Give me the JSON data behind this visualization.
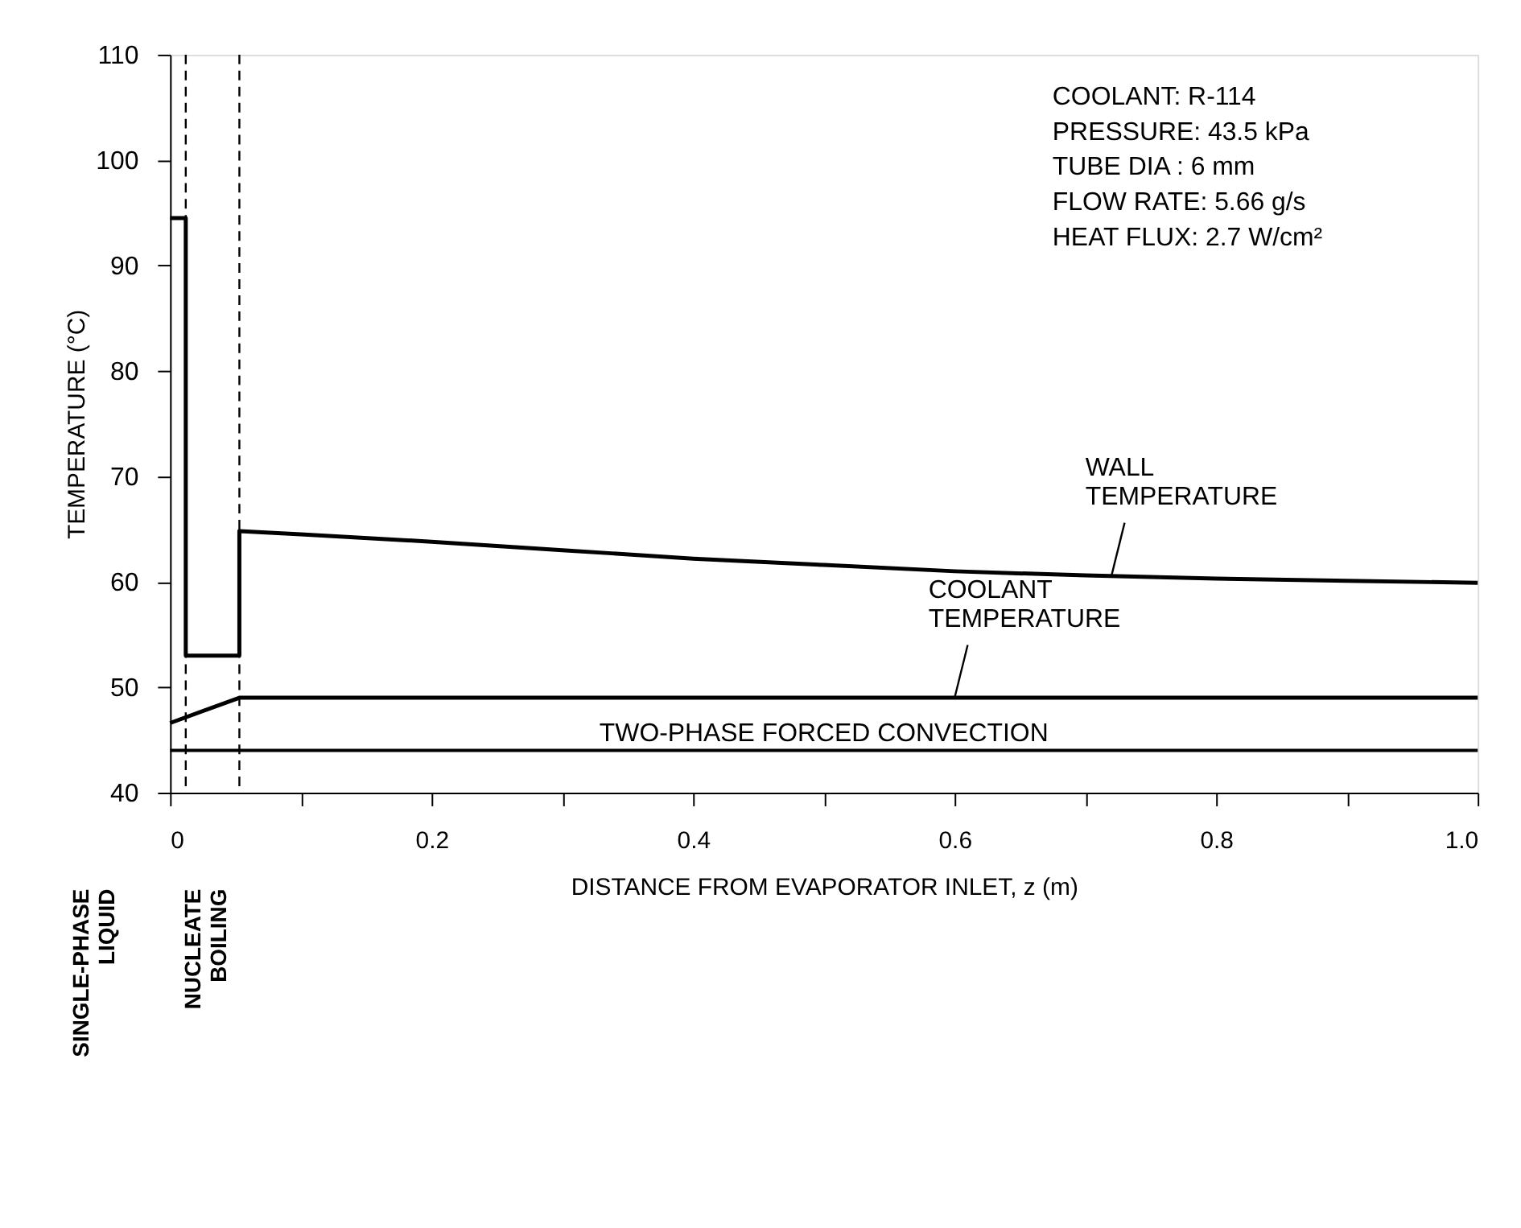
{
  "chart_data": {
    "type": "line",
    "xlabel": "DISTANCE FROM EVAPORATOR INLET, z (m)",
    "ylabel": "TEMPERATURE (°C)",
    "series": [
      {
        "color": "#000000",
        "x": [
          0,
          0.012,
          0.012,
          0.053,
          0.053,
          0.1,
          0.2,
          0.3,
          0.4,
          0.5,
          0.6,
          0.7,
          0.8,
          0.9,
          1.0
        ],
        "values": [
          94.5,
          94.5,
          53,
          53,
          64.8,
          64.5,
          63.8,
          63,
          62.2,
          61.6,
          61,
          60.6,
          60.3,
          60.1,
          59.9
        ]
      },
      {
        "color": "#000000",
        "x": [
          0,
          0.053,
          1.0
        ],
        "values": [
          46.6,
          49,
          49
        ]
      }
    ],
    "xlim": [
      0,
      1.0
    ],
    "xticks": [
      0,
      {
        "value": 0.1,
        "label": null
      },
      0.2,
      {
        "value": 0.3,
        "label": null
      },
      0.4,
      {
        "value": 0.5,
        "label": null
      },
      0.6,
      {
        "value": 0.7,
        "label": null
      },
      0.8,
      {
        "value": 0.9,
        "label": null
      },
      {
        "value": 1.0,
        "label": "1.0"
      }
    ],
    "ylim": [
      40,
      110
    ],
    "yticks": [
      40,
      50,
      60,
      70,
      80,
      90,
      100,
      110
    ],
    "ref_lines": [
      {
        "axis": "x",
        "value": 0.012,
        "line_style": "dashed"
      },
      {
        "axis": "x",
        "value": 0.053,
        "line_style": "dashed"
      },
      {
        "axis": "y",
        "value": 44,
        "label": "TWO-PHASE FORCED CONVECTION"
      }
    ],
    "annotations": [
      "COOLANT: R-114",
      "PRESSURE: 43.5 kPa",
      "TUBE DIA : 6 mm",
      "FLOW RATE: 5.66 g/s",
      "HEAT FLUX: 2.7 W/cm²",
      {
        "text": "WALL TEMPERATURE",
        "x": 0.72,
        "y": 60.6
      },
      {
        "text": "COOLANT TEMPERATURE",
        "x": 0.6,
        "y": 49
      },
      "SINGLE-PHASE LIQUID",
      "NUCLEATE BOILING"
    ],
    "grid": false,
    "marker": "none",
    "line_style": "solid"
  }
}
